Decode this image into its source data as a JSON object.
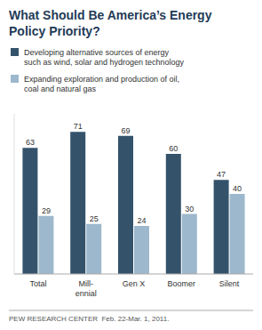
{
  "chart_data": {
    "type": "bar",
    "title": "What Should Be America’s Energy\nPolicy Priority?",
    "categories": [
      "Total",
      "Mill-\nennial",
      "Gen X",
      "Boomer",
      "Silent"
    ],
    "series": [
      {
        "name": "Developing alternative sources of energy\nsuch as wind, solar and hydrogen technology",
        "color": "#34536b",
        "values": [
          63,
          71,
          69,
          60,
          47
        ]
      },
      {
        "name": "Expanding exploration and production of oil,\ncoal and natural gas",
        "color": "#9db8cc",
        "values": [
          29,
          25,
          24,
          30,
          40
        ]
      }
    ],
    "ylim": [
      0,
      80
    ],
    "yticks": [],
    "tick_labels": "x",
    "data_labels": true,
    "grid": false,
    "annotations": [
      "PEW RESEARCH CENTER  Feb. 22-Mar. 1, 2011."
    ]
  }
}
